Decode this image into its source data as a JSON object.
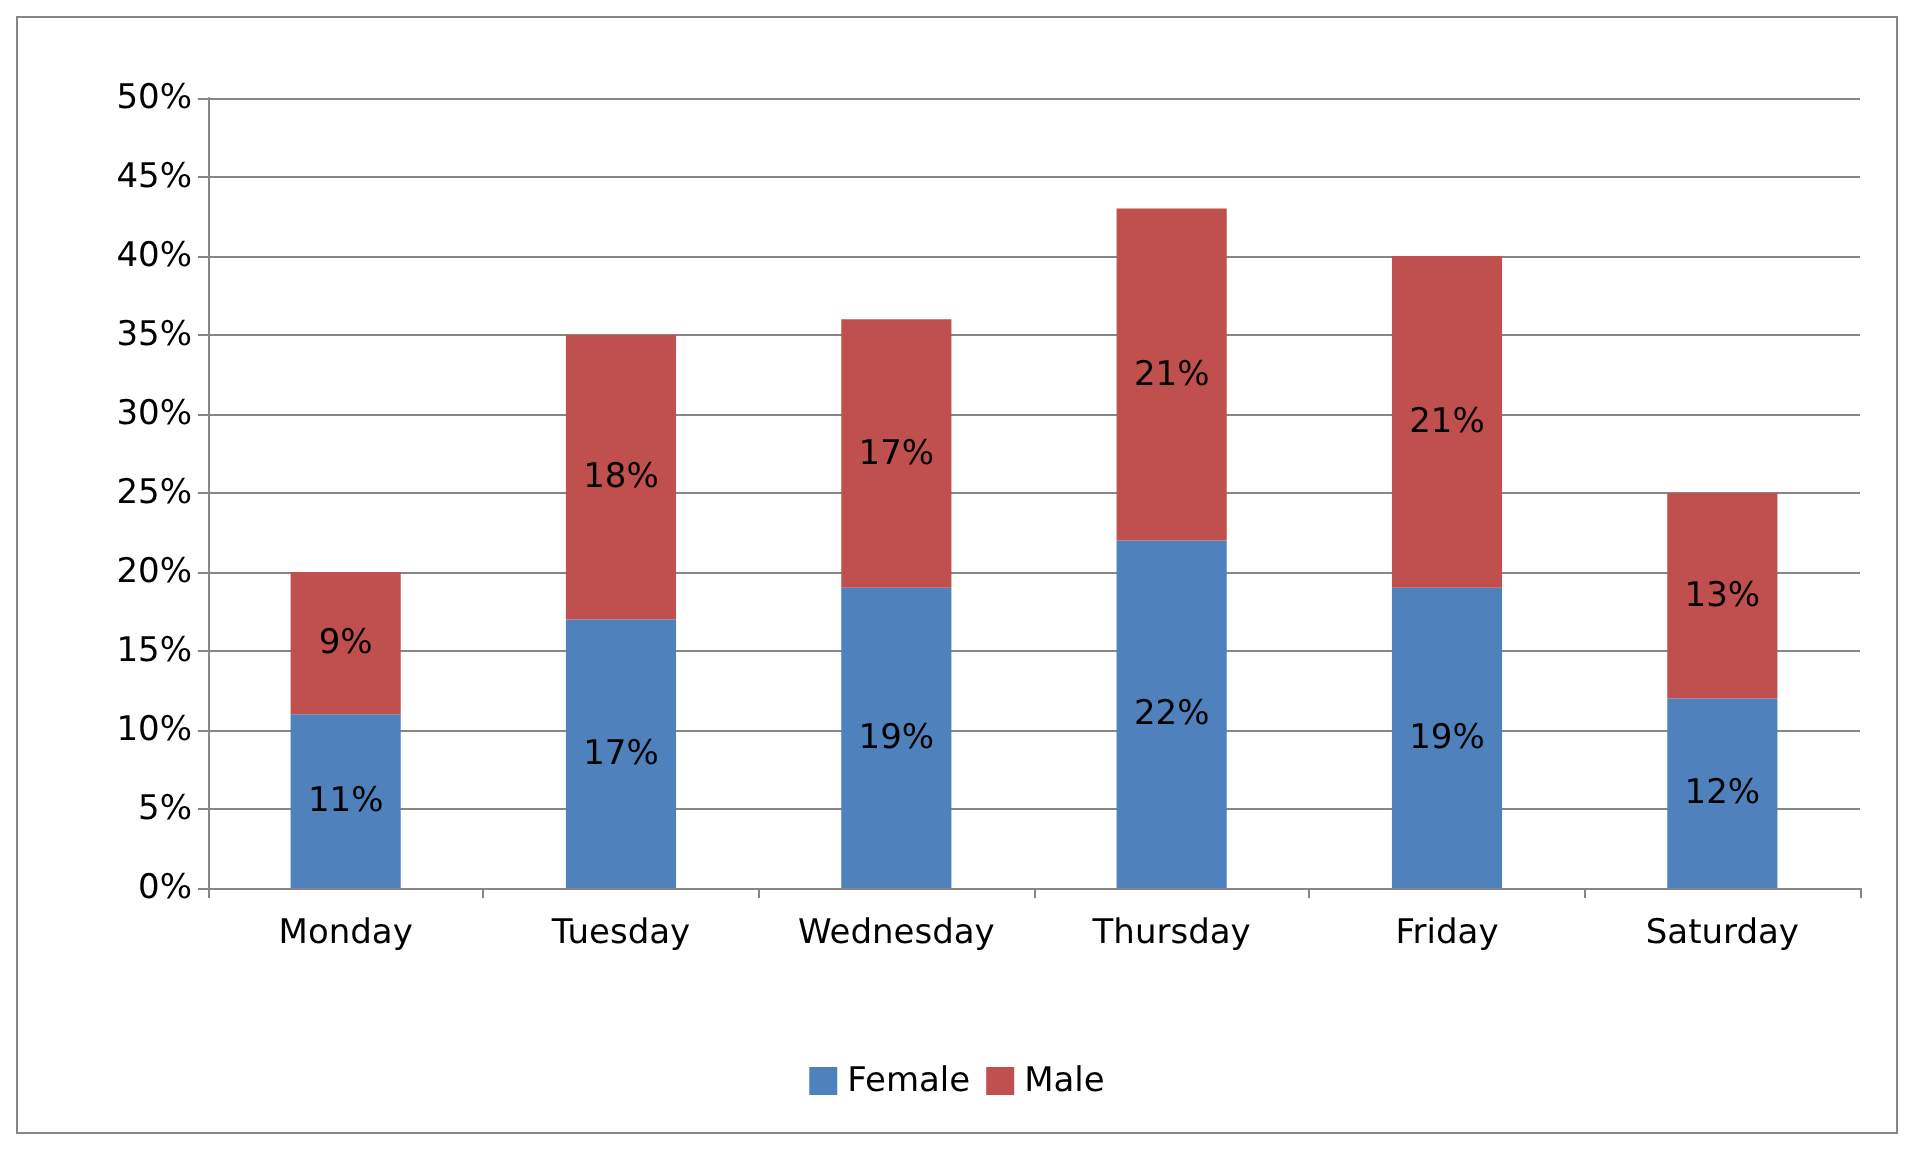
{
  "chart_data": {
    "type": "bar",
    "stacked": true,
    "categories": [
      "Monday",
      "Tuesday",
      "Wednesday",
      "Thursday",
      "Friday",
      "Saturday"
    ],
    "series": [
      {
        "name": "Female",
        "color": "#4f81bd",
        "values": [
          11,
          17,
          19,
          22,
          19,
          12
        ],
        "value_labels": [
          "11%",
          "17%",
          "19%",
          "22%",
          "19%",
          "12%"
        ]
      },
      {
        "name": "Male",
        "color": "#c0504d",
        "values": [
          9,
          18,
          17,
          21,
          21,
          13
        ],
        "value_labels": [
          "9%",
          "18%",
          "17%",
          "21%",
          "21%",
          "13%"
        ]
      }
    ],
    "ylim": [
      0,
      50
    ],
    "yticks": [
      {
        "value": 0,
        "label": "0%"
      },
      {
        "value": 5,
        "label": "5%"
      },
      {
        "value": 10,
        "label": "10%"
      },
      {
        "value": 15,
        "label": "15%"
      },
      {
        "value": 20,
        "label": "20%"
      },
      {
        "value": 25,
        "label": "25%"
      },
      {
        "value": 30,
        "label": "30%"
      },
      {
        "value": 35,
        "label": "35%"
      },
      {
        "value": 40,
        "label": "40%"
      },
      {
        "value": 45,
        "label": "45%"
      },
      {
        "value": 50,
        "label": "50%"
      }
    ],
    "grid": "y",
    "legend": "bottom"
  }
}
